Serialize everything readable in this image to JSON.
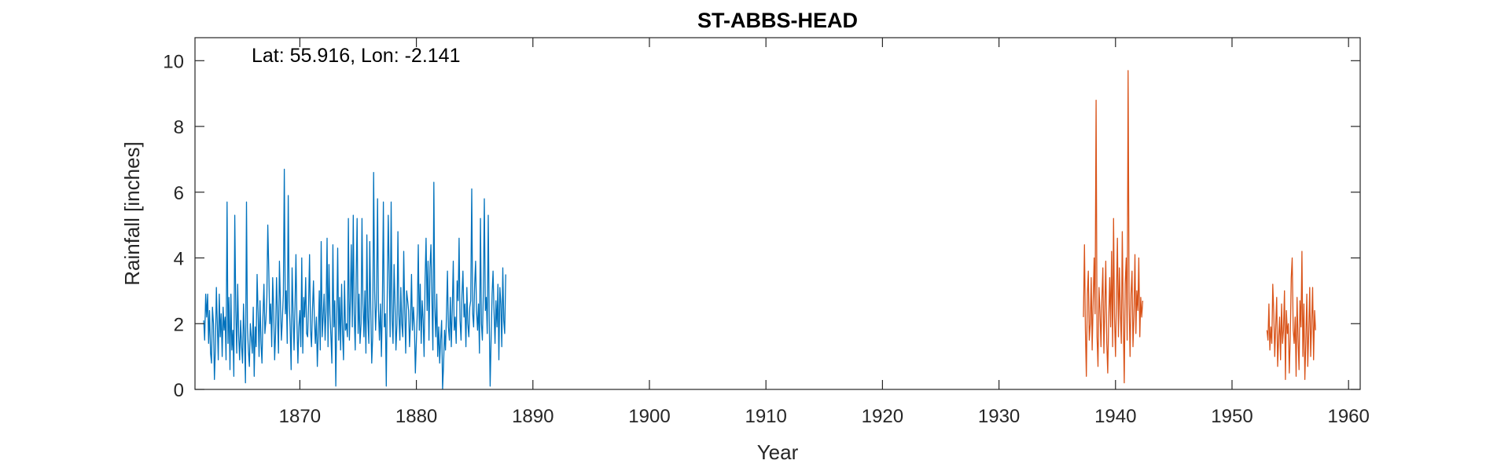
{
  "chart_data": {
    "type": "line",
    "title": "ST-ABBS-HEAD",
    "xlabel": "Year",
    "ylabel": "Rainfall [inches]",
    "annotation": "Lat: 55.916, Lon: -2.141",
    "xlim": [
      1861,
      1961
    ],
    "ylim": [
      0,
      10.7
    ],
    "xticks": [
      1870,
      1880,
      1890,
      1900,
      1910,
      1920,
      1930,
      1940,
      1950,
      1960
    ],
    "yticks": [
      0,
      2,
      4,
      6,
      8,
      10
    ],
    "grid": false,
    "legend": "none",
    "frequency": "monthly",
    "series": [
      {
        "color": "#0072BD",
        "start": 1861.75,
        "step": 0.08333,
        "values": [
          2.1,
          1.5,
          2.9,
          2.2,
          2.9,
          1.4,
          2.4,
          1.1,
          0.8,
          2.5,
          2.0,
          0.3,
          1.2,
          3.1,
          2.0,
          0.9,
          2.9,
          1.6,
          2.3,
          1.0,
          2.5,
          1.8,
          2.2,
          0.9,
          5.7,
          1.4,
          2.8,
          0.6,
          2.9,
          1.2,
          1.8,
          0.4,
          5.3,
          2.4,
          1.1,
          3.2,
          1.6,
          0.9,
          2.1,
          1.3,
          0.8,
          2.6,
          1.5,
          0.2,
          5.7,
          1.9,
          1.2,
          0.7,
          2.0,
          1.6,
          1.1,
          2.5,
          0.4,
          1.9,
          1.3,
          3.5,
          2.3,
          1.0,
          2.7,
          1.4,
          0.8,
          2.2,
          3.2,
          1.7,
          2.1,
          2.8,
          5.0,
          3.6,
          2.0,
          2.6,
          1.3,
          3.4,
          2.5,
          0.9,
          1.7,
          3.4,
          2.2,
          1.1,
          3.9,
          2.6,
          1.5,
          2.1,
          2.9,
          6.7,
          2.3,
          3.0,
          1.4,
          5.9,
          2.7,
          1.9,
          0.6,
          3.7,
          2.4,
          1.2,
          2.5,
          4.1,
          2.0,
          0.8,
          1.9,
          2.4,
          1.3,
          4.0,
          1.1,
          2.8,
          2.2,
          3.4,
          1.7,
          1.6,
          2.6,
          4.1,
          1.8,
          1.3,
          2.4,
          3.3,
          2.1,
          1.4,
          2.2,
          0.7,
          1.7,
          3.0,
          1.2,
          4.5,
          1.6,
          2.2,
          2.9,
          1.5,
          2.4,
          4.6,
          1.3,
          3.8,
          2.3,
          1.6,
          0.8,
          4.4,
          1.9,
          2.7,
          0.1,
          2.2,
          4.3,
          1.5,
          2.8,
          1.2,
          3.2,
          1.7,
          0.9,
          3.3,
          1.8,
          2.0,
          1.6,
          5.2,
          1.5,
          2.7,
          4.4,
          1.9,
          5.3,
          2.3,
          1.2,
          3.4,
          5.2,
          1.7,
          2.9,
          1.4,
          2.0,
          5.2,
          2.6,
          1.6,
          3.0,
          1.1,
          4.7,
          2.2,
          1.4,
          4.5,
          2.5,
          0.8,
          1.6,
          6.6,
          3.0,
          1.8,
          2.7,
          5.8,
          2.4,
          1.5,
          2.6,
          1.0,
          2.5,
          5.7,
          1.9,
          2.3,
          0.1,
          2.8,
          5.3,
          3.5,
          1.6,
          5.7,
          2.1,
          1.4,
          3.8,
          2.6,
          1.2,
          2.0,
          4.8,
          2.3,
          1.5,
          3.1,
          2.0,
          1.6,
          4.2,
          2.5,
          1.1,
          3.0,
          2.7,
          2.4,
          1.3,
          2.1,
          3.5,
          1.8,
          2.5,
          1.9,
          0.5,
          1.5,
          2.4,
          4.4,
          1.8,
          3.2,
          1.4,
          2.7,
          2.1,
          1.0,
          3.4,
          4.6,
          2.4,
          3.9,
          1.5,
          3.7,
          4.4,
          2.8,
          1.2,
          6.3,
          2.5,
          1.6,
          2.9,
          1.0,
          1.9,
          0.8,
          1.5,
          2.1,
          0.0,
          0.7,
          1.8,
          1.2,
          2.3,
          3.6,
          1.9,
          1.5,
          2.8,
          1.3,
          2.5,
          3.9,
          1.8,
          2.2,
          1.4,
          3.3,
          2.7,
          4.6,
          2.1,
          1.5,
          2.9,
          3.6,
          2.2,
          2.6,
          1.3,
          3.1,
          2.0,
          1.6,
          2.5,
          2.7,
          6.1,
          2.3,
          1.9,
          3.2,
          3.9,
          2.4,
          1.8,
          2.6,
          1.1,
          5.2,
          2.0,
          1.5,
          3.0,
          5.8,
          2.4,
          2.8,
          1.7,
          5.3,
          2.2,
          0.1,
          1.6,
          2.9,
          3.6,
          2.3,
          1.4,
          2.7,
          1.9,
          3.2,
          0.9,
          3.1,
          2.6,
          1.3,
          3.7,
          2.1,
          1.7,
          3.5
        ]
      },
      {
        "color": "#D95319",
        "start": 1937.25,
        "step": 0.08333,
        "values": [
          2.2,
          4.4,
          1.8,
          0.4,
          2.9,
          3.6,
          1.5,
          2.0,
          3.4,
          1.2,
          2.7,
          4.0,
          2.3,
          8.8,
          1.6,
          0.7,
          3.1,
          2.4,
          1.3,
          2.8,
          3.7,
          1.1,
          2.5,
          3.9,
          1.4,
          0.5,
          2.1,
          3.4,
          1.9,
          4.2,
          1.3,
          5.2,
          2.2,
          1.0,
          2.9,
          4.6,
          1.6,
          3.7,
          2.3,
          1.4,
          4.8,
          2.1,
          0.2,
          3.2,
          4.0,
          1.5,
          9.7,
          2.6,
          1.0,
          2.9,
          3.6,
          1.3,
          2.2,
          4.1,
          1.7,
          3.0,
          2.4,
          4.0,
          1.6,
          2.8,
          2.2,
          2.7
        ]
      },
      {
        "color": "#D95319",
        "start": 1953.0,
        "step": 0.08333,
        "values": [
          1.8,
          1.5,
          2.6,
          1.2,
          1.9,
          1.4,
          3.2,
          2.3,
          1.0,
          2.0,
          2.8,
          0.7,
          1.6,
          2.2,
          0.9,
          2.6,
          1.4,
          1.8,
          3.0,
          0.3,
          2.4,
          1.7,
          2.0,
          0.5,
          1.6,
          3.4,
          4.0,
          1.8,
          1.4,
          2.2,
          0.4,
          2.8,
          1.5,
          0.6,
          2.7,
          1.9,
          4.2,
          1.0,
          2.6,
          0.3,
          1.4,
          2.9,
          0.7,
          1.7,
          3.1,
          1.0,
          2.0,
          3.1,
          0.9,
          2.4,
          1.8
        ]
      }
    ]
  }
}
